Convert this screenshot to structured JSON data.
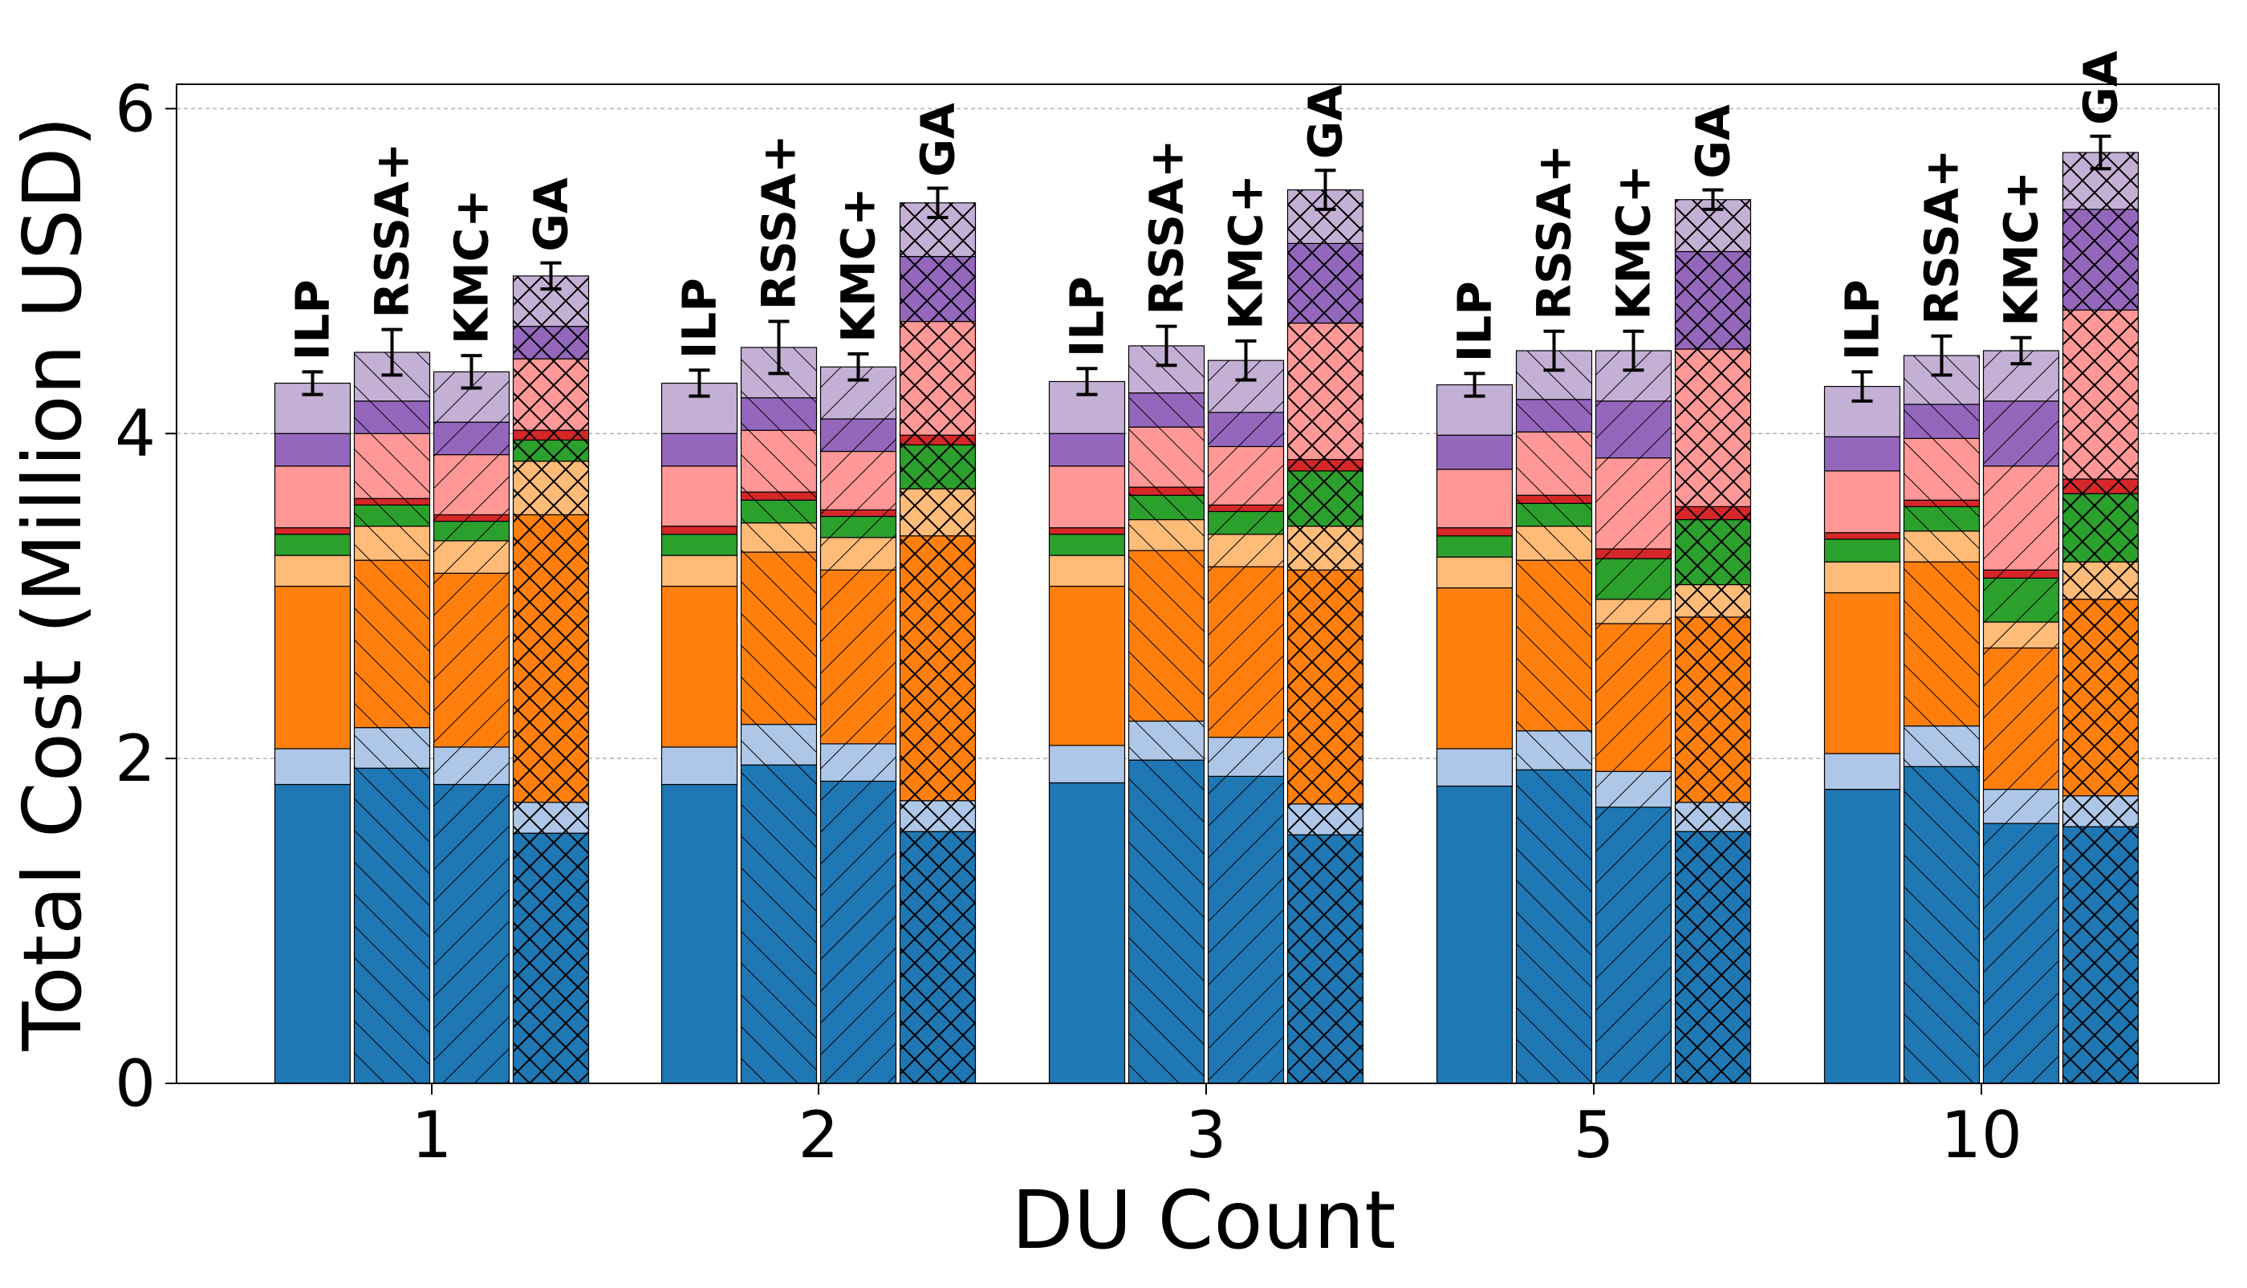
{
  "chart_data": {
    "type": "bar",
    "subtype": "grouped-stacked-with-error-bars",
    "title": "",
    "xlabel": "DU Count",
    "ylabel": "Total Cost (Million USD)",
    "ylim": [
      0,
      6.15
    ],
    "yticks": [
      0,
      2,
      4,
      6
    ],
    "grid": "horizontal dashed",
    "legend": "none",
    "categories": [
      "1",
      "2",
      "3",
      "5",
      "10"
    ],
    "methods": [
      {
        "name": "ILP",
        "hatch": "none"
      },
      {
        "name": "RSSA+",
        "hatch": "diagonal-forward"
      },
      {
        "name": "KMC+",
        "hatch": "diagonal-back"
      },
      {
        "name": "GA",
        "hatch": "cross"
      }
    ],
    "segment_colors": [
      "#1f77b4",
      "#aec7e8",
      "#ff7f0e",
      "#ffbb78",
      "#2ca02c",
      "#d62728",
      "#ff9896",
      "#9467bd",
      "#c5b0d5"
    ],
    "stack_tops": [
      [
        [
          1.84,
          2.06,
          3.06,
          3.25,
          3.38,
          3.42,
          3.8,
          4.0,
          4.31
        ],
        [
          1.94,
          2.19,
          3.22,
          3.43,
          3.56,
          3.6,
          4.0,
          4.2,
          4.5
        ],
        [
          1.84,
          2.07,
          3.14,
          3.34,
          3.46,
          3.5,
          3.87,
          4.07,
          4.38
        ],
        [
          1.54,
          1.73,
          3.5,
          3.83,
          3.96,
          4.02,
          4.46,
          4.66,
          4.97
        ]
      ],
      [
        [
          1.84,
          2.07,
          3.06,
          3.25,
          3.38,
          3.43,
          3.8,
          4.0,
          4.31
        ],
        [
          1.96,
          2.21,
          3.27,
          3.45,
          3.59,
          3.64,
          4.02,
          4.22,
          4.53
        ],
        [
          1.86,
          2.09,
          3.16,
          3.36,
          3.49,
          3.53,
          3.89,
          4.09,
          4.41
        ],
        [
          1.55,
          1.74,
          3.37,
          3.66,
          3.93,
          3.99,
          4.69,
          5.09,
          5.42
        ]
      ],
      [
        [
          1.85,
          2.08,
          3.06,
          3.25,
          3.38,
          3.42,
          3.8,
          4.0,
          4.32
        ],
        [
          1.99,
          2.23,
          3.28,
          3.47,
          3.62,
          3.67,
          4.04,
          4.25,
          4.54
        ],
        [
          1.89,
          2.13,
          3.18,
          3.38,
          3.52,
          3.56,
          3.92,
          4.13,
          4.45
        ],
        [
          1.53,
          1.72,
          3.16,
          3.43,
          3.77,
          3.84,
          4.68,
          5.17,
          5.5
        ]
      ],
      [
        [
          1.83,
          2.06,
          3.05,
          3.24,
          3.37,
          3.42,
          3.78,
          3.99,
          4.3
        ],
        [
          1.93,
          2.17,
          3.22,
          3.43,
          3.57,
          3.62,
          4.01,
          4.21,
          4.51
        ],
        [
          1.7,
          1.92,
          2.83,
          2.98,
          3.23,
          3.29,
          3.85,
          4.2,
          4.51
        ],
        [
          1.55,
          1.73,
          2.87,
          3.07,
          3.47,
          3.55,
          4.52,
          5.12,
          5.44
        ]
      ],
      [
        [
          1.81,
          2.03,
          3.02,
          3.21,
          3.35,
          3.39,
          3.77,
          3.98,
          4.29
        ],
        [
          1.95,
          2.2,
          3.21,
          3.4,
          3.55,
          3.59,
          3.97,
          4.18,
          4.48
        ],
        [
          1.6,
          1.81,
          2.68,
          2.84,
          3.11,
          3.16,
          3.8,
          4.2,
          4.51
        ],
        [
          1.58,
          1.77,
          2.98,
          3.21,
          3.63,
          3.72,
          4.76,
          5.38,
          5.73
        ]
      ]
    ],
    "error_bars": [
      [
        0.07,
        0.14,
        0.1,
        0.08
      ],
      [
        0.08,
        0.16,
        0.08,
        0.09
      ],
      [
        0.08,
        0.12,
        0.12,
        0.12
      ],
      [
        0.07,
        0.12,
        0.12,
        0.06
      ],
      [
        0.09,
        0.12,
        0.08,
        0.1
      ]
    ]
  }
}
